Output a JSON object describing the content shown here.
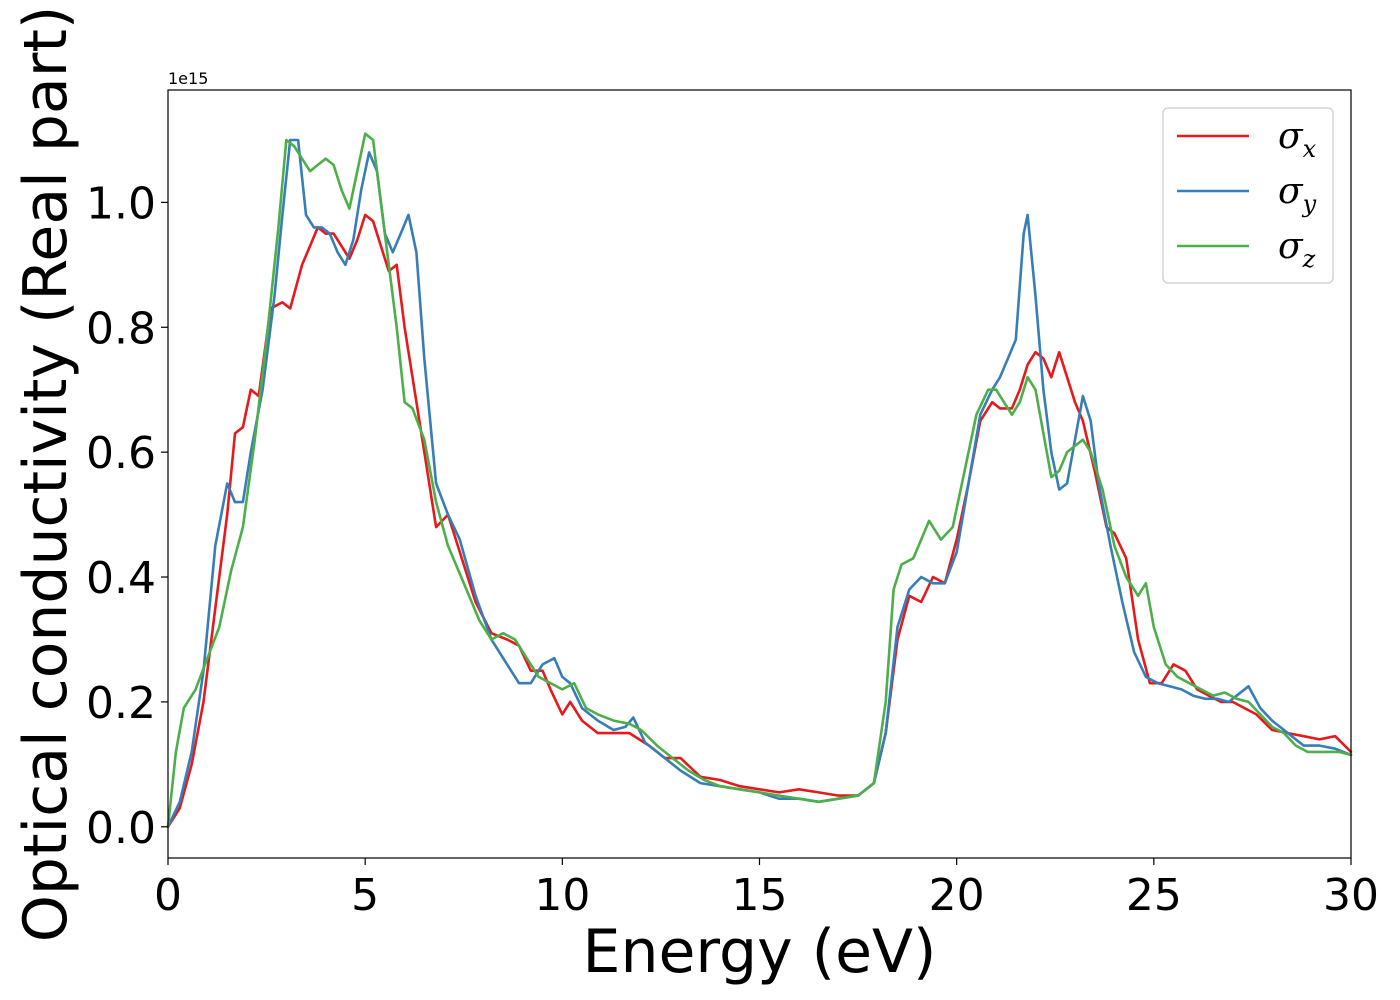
{
  "chart_data": {
    "type": "line",
    "xlabel": "Energy (eV)",
    "ylabel": "Optical conductivity (Real part)",
    "y_offset_label": "1e15",
    "xlim": [
      0,
      30
    ],
    "ylim": [
      -0.05,
      1.18
    ],
    "x_ticks": [
      0,
      5,
      10,
      15,
      20,
      25,
      30
    ],
    "x_tick_labels": [
      "0",
      "5",
      "10",
      "15",
      "20",
      "25",
      "30"
    ],
    "y_ticks": [
      0.0,
      0.2,
      0.4,
      0.6,
      0.8,
      1.0
    ],
    "y_tick_labels": [
      "0.0",
      "0.2",
      "0.4",
      "0.6",
      "0.8",
      "1.0"
    ],
    "grid": false,
    "legend_position": "top-right",
    "series": [
      {
        "name": "σ",
        "subscript": "x",
        "color": "#e41a1c",
        "points": [
          [
            0,
            0.0
          ],
          [
            0.3,
            0.03
          ],
          [
            0.6,
            0.1
          ],
          [
            0.9,
            0.2
          ],
          [
            1.2,
            0.35
          ],
          [
            1.5,
            0.5
          ],
          [
            1.7,
            0.63
          ],
          [
            1.9,
            0.64
          ],
          [
            2.1,
            0.7
          ],
          [
            2.3,
            0.69
          ],
          [
            2.6,
            0.83
          ],
          [
            2.9,
            0.84
          ],
          [
            3.1,
            0.83
          ],
          [
            3.4,
            0.9
          ],
          [
            3.6,
            0.93
          ],
          [
            3.8,
            0.96
          ],
          [
            4.0,
            0.95
          ],
          [
            4.2,
            0.95
          ],
          [
            4.4,
            0.93
          ],
          [
            4.6,
            0.91
          ],
          [
            4.8,
            0.94
          ],
          [
            5.0,
            0.98
          ],
          [
            5.2,
            0.97
          ],
          [
            5.4,
            0.93
          ],
          [
            5.6,
            0.89
          ],
          [
            5.8,
            0.9
          ],
          [
            6.0,
            0.8
          ],
          [
            6.2,
            0.72
          ],
          [
            6.5,
            0.6
          ],
          [
            6.8,
            0.48
          ],
          [
            7.1,
            0.5
          ],
          [
            7.4,
            0.44
          ],
          [
            7.8,
            0.36
          ],
          [
            8.2,
            0.31
          ],
          [
            8.6,
            0.3
          ],
          [
            8.9,
            0.29
          ],
          [
            9.2,
            0.25
          ],
          [
            9.5,
            0.25
          ],
          [
            9.7,
            0.22
          ],
          [
            10.0,
            0.18
          ],
          [
            10.2,
            0.2
          ],
          [
            10.5,
            0.17
          ],
          [
            10.9,
            0.15
          ],
          [
            11.3,
            0.15
          ],
          [
            11.7,
            0.15
          ],
          [
            12.2,
            0.13
          ],
          [
            12.6,
            0.11
          ],
          [
            13.0,
            0.11
          ],
          [
            13.5,
            0.08
          ],
          [
            14.0,
            0.075
          ],
          [
            14.5,
            0.065
          ],
          [
            15.0,
            0.06
          ],
          [
            15.5,
            0.055
          ],
          [
            16.0,
            0.06
          ],
          [
            16.5,
            0.055
          ],
          [
            17.0,
            0.05
          ],
          [
            17.5,
            0.05
          ],
          [
            17.9,
            0.07
          ],
          [
            18.2,
            0.15
          ],
          [
            18.5,
            0.3
          ],
          [
            18.8,
            0.37
          ],
          [
            19.1,
            0.36
          ],
          [
            19.4,
            0.4
          ],
          [
            19.7,
            0.39
          ],
          [
            20.0,
            0.46
          ],
          [
            20.3,
            0.55
          ],
          [
            20.6,
            0.65
          ],
          [
            20.9,
            0.68
          ],
          [
            21.1,
            0.67
          ],
          [
            21.4,
            0.67
          ],
          [
            21.6,
            0.7
          ],
          [
            21.8,
            0.74
          ],
          [
            22.0,
            0.76
          ],
          [
            22.2,
            0.75
          ],
          [
            22.4,
            0.72
          ],
          [
            22.6,
            0.76
          ],
          [
            22.8,
            0.72
          ],
          [
            23.0,
            0.68
          ],
          [
            23.2,
            0.65
          ],
          [
            23.5,
            0.57
          ],
          [
            23.8,
            0.48
          ],
          [
            24.0,
            0.47
          ],
          [
            24.3,
            0.43
          ],
          [
            24.6,
            0.3
          ],
          [
            24.9,
            0.23
          ],
          [
            25.2,
            0.23
          ],
          [
            25.5,
            0.26
          ],
          [
            25.8,
            0.25
          ],
          [
            26.1,
            0.22
          ],
          [
            26.4,
            0.21
          ],
          [
            26.7,
            0.2
          ],
          [
            27.0,
            0.2
          ],
          [
            27.3,
            0.19
          ],
          [
            27.6,
            0.18
          ],
          [
            28.0,
            0.155
          ],
          [
            28.4,
            0.15
          ],
          [
            28.8,
            0.145
          ],
          [
            29.2,
            0.14
          ],
          [
            29.6,
            0.145
          ],
          [
            30.0,
            0.12
          ]
        ]
      },
      {
        "name": "σ",
        "subscript": "y",
        "color": "#377eb8",
        "points": [
          [
            0,
            0.0
          ],
          [
            0.3,
            0.04
          ],
          [
            0.6,
            0.12
          ],
          [
            0.9,
            0.25
          ],
          [
            1.2,
            0.45
          ],
          [
            1.5,
            0.55
          ],
          [
            1.7,
            0.52
          ],
          [
            1.9,
            0.52
          ],
          [
            2.1,
            0.6
          ],
          [
            2.4,
            0.7
          ],
          [
            2.7,
            0.85
          ],
          [
            2.9,
            0.98
          ],
          [
            3.1,
            1.1
          ],
          [
            3.3,
            1.1
          ],
          [
            3.5,
            0.98
          ],
          [
            3.7,
            0.96
          ],
          [
            3.9,
            0.96
          ],
          [
            4.1,
            0.95
          ],
          [
            4.3,
            0.92
          ],
          [
            4.5,
            0.9
          ],
          [
            4.7,
            0.94
          ],
          [
            4.9,
            1.02
          ],
          [
            5.1,
            1.08
          ],
          [
            5.3,
            1.05
          ],
          [
            5.5,
            0.95
          ],
          [
            5.7,
            0.92
          ],
          [
            5.9,
            0.95
          ],
          [
            6.1,
            0.98
          ],
          [
            6.3,
            0.92
          ],
          [
            6.5,
            0.75
          ],
          [
            6.8,
            0.55
          ],
          [
            7.1,
            0.5
          ],
          [
            7.4,
            0.46
          ],
          [
            7.8,
            0.37
          ],
          [
            8.2,
            0.3
          ],
          [
            8.6,
            0.26
          ],
          [
            8.9,
            0.23
          ],
          [
            9.2,
            0.23
          ],
          [
            9.5,
            0.26
          ],
          [
            9.8,
            0.27
          ],
          [
            10.0,
            0.24
          ],
          [
            10.2,
            0.23
          ],
          [
            10.5,
            0.19
          ],
          [
            10.9,
            0.17
          ],
          [
            11.3,
            0.155
          ],
          [
            11.6,
            0.16
          ],
          [
            11.8,
            0.175
          ],
          [
            12.1,
            0.135
          ],
          [
            12.5,
            0.115
          ],
          [
            13.0,
            0.09
          ],
          [
            13.5,
            0.07
          ],
          [
            14.0,
            0.065
          ],
          [
            14.5,
            0.06
          ],
          [
            15.0,
            0.055
          ],
          [
            15.5,
            0.045
          ],
          [
            16.0,
            0.045
          ],
          [
            16.5,
            0.04
          ],
          [
            17.0,
            0.045
          ],
          [
            17.5,
            0.05
          ],
          [
            17.9,
            0.07
          ],
          [
            18.2,
            0.15
          ],
          [
            18.5,
            0.32
          ],
          [
            18.8,
            0.38
          ],
          [
            19.1,
            0.4
          ],
          [
            19.4,
            0.39
          ],
          [
            19.7,
            0.39
          ],
          [
            20.0,
            0.44
          ],
          [
            20.3,
            0.55
          ],
          [
            20.6,
            0.66
          ],
          [
            20.9,
            0.7
          ],
          [
            21.1,
            0.72
          ],
          [
            21.3,
            0.75
          ],
          [
            21.5,
            0.78
          ],
          [
            21.7,
            0.95
          ],
          [
            21.8,
            0.98
          ],
          [
            22.0,
            0.85
          ],
          [
            22.2,
            0.7
          ],
          [
            22.4,
            0.6
          ],
          [
            22.6,
            0.54
          ],
          [
            22.8,
            0.55
          ],
          [
            23.0,
            0.62
          ],
          [
            23.2,
            0.69
          ],
          [
            23.4,
            0.65
          ],
          [
            23.6,
            0.55
          ],
          [
            23.9,
            0.45
          ],
          [
            24.2,
            0.36
          ],
          [
            24.5,
            0.28
          ],
          [
            24.8,
            0.24
          ],
          [
            25.1,
            0.23
          ],
          [
            25.4,
            0.225
          ],
          [
            25.7,
            0.22
          ],
          [
            26.0,
            0.21
          ],
          [
            26.3,
            0.205
          ],
          [
            26.6,
            0.205
          ],
          [
            26.9,
            0.2
          ],
          [
            27.1,
            0.21
          ],
          [
            27.4,
            0.225
          ],
          [
            27.7,
            0.19
          ],
          [
            28.0,
            0.17
          ],
          [
            28.4,
            0.15
          ],
          [
            28.8,
            0.13
          ],
          [
            29.2,
            0.13
          ],
          [
            29.6,
            0.125
          ],
          [
            30.0,
            0.115
          ]
        ]
      },
      {
        "name": "σ",
        "subscript": "z",
        "color": "#4daf4a",
        "points": [
          [
            0,
            0.0
          ],
          [
            0.2,
            0.12
          ],
          [
            0.4,
            0.19
          ],
          [
            0.7,
            0.22
          ],
          [
            1.0,
            0.27
          ],
          [
            1.3,
            0.32
          ],
          [
            1.6,
            0.41
          ],
          [
            1.9,
            0.48
          ],
          [
            2.2,
            0.62
          ],
          [
            2.5,
            0.78
          ],
          [
            2.8,
            0.96
          ],
          [
            3.0,
            1.1
          ],
          [
            3.2,
            1.09
          ],
          [
            3.4,
            1.07
          ],
          [
            3.6,
            1.05
          ],
          [
            3.8,
            1.06
          ],
          [
            4.0,
            1.07
          ],
          [
            4.2,
            1.06
          ],
          [
            4.4,
            1.02
          ],
          [
            4.6,
            0.99
          ],
          [
            4.8,
            1.05
          ],
          [
            5.0,
            1.11
          ],
          [
            5.2,
            1.1
          ],
          [
            5.4,
            1.0
          ],
          [
            5.6,
            0.9
          ],
          [
            5.8,
            0.8
          ],
          [
            6.0,
            0.68
          ],
          [
            6.2,
            0.67
          ],
          [
            6.5,
            0.62
          ],
          [
            6.8,
            0.52
          ],
          [
            7.1,
            0.45
          ],
          [
            7.5,
            0.39
          ],
          [
            7.9,
            0.33
          ],
          [
            8.2,
            0.3
          ],
          [
            8.5,
            0.31
          ],
          [
            8.8,
            0.3
          ],
          [
            9.1,
            0.27
          ],
          [
            9.4,
            0.24
          ],
          [
            9.7,
            0.23
          ],
          [
            10.0,
            0.22
          ],
          [
            10.3,
            0.23
          ],
          [
            10.6,
            0.19
          ],
          [
            10.9,
            0.18
          ],
          [
            11.3,
            0.17
          ],
          [
            11.7,
            0.165
          ],
          [
            12.0,
            0.155
          ],
          [
            12.4,
            0.13
          ],
          [
            12.8,
            0.11
          ],
          [
            13.2,
            0.09
          ],
          [
            13.6,
            0.075
          ],
          [
            14.0,
            0.065
          ],
          [
            14.5,
            0.06
          ],
          [
            15.0,
            0.055
          ],
          [
            15.5,
            0.05
          ],
          [
            16.0,
            0.045
          ],
          [
            16.5,
            0.04
          ],
          [
            17.0,
            0.045
          ],
          [
            17.5,
            0.05
          ],
          [
            17.9,
            0.07
          ],
          [
            18.2,
            0.2
          ],
          [
            18.4,
            0.38
          ],
          [
            18.6,
            0.42
          ],
          [
            18.9,
            0.43
          ],
          [
            19.1,
            0.46
          ],
          [
            19.3,
            0.49
          ],
          [
            19.6,
            0.46
          ],
          [
            19.9,
            0.48
          ],
          [
            20.2,
            0.57
          ],
          [
            20.5,
            0.66
          ],
          [
            20.8,
            0.7
          ],
          [
            21.0,
            0.7
          ],
          [
            21.2,
            0.68
          ],
          [
            21.4,
            0.66
          ],
          [
            21.6,
            0.68
          ],
          [
            21.8,
            0.72
          ],
          [
            22.0,
            0.7
          ],
          [
            22.2,
            0.63
          ],
          [
            22.4,
            0.56
          ],
          [
            22.6,
            0.57
          ],
          [
            22.8,
            0.6
          ],
          [
            23.0,
            0.61
          ],
          [
            23.2,
            0.62
          ],
          [
            23.4,
            0.6
          ],
          [
            23.7,
            0.54
          ],
          [
            24.0,
            0.45
          ],
          [
            24.3,
            0.4
          ],
          [
            24.6,
            0.37
          ],
          [
            24.8,
            0.39
          ],
          [
            25.0,
            0.32
          ],
          [
            25.3,
            0.26
          ],
          [
            25.6,
            0.24
          ],
          [
            25.9,
            0.23
          ],
          [
            26.2,
            0.22
          ],
          [
            26.5,
            0.21
          ],
          [
            26.8,
            0.215
          ],
          [
            27.1,
            0.205
          ],
          [
            27.4,
            0.2
          ],
          [
            27.7,
            0.18
          ],
          [
            28.0,
            0.16
          ],
          [
            28.3,
            0.15
          ],
          [
            28.6,
            0.13
          ],
          [
            28.9,
            0.12
          ],
          [
            29.3,
            0.12
          ],
          [
            29.7,
            0.12
          ],
          [
            30.0,
            0.115
          ]
        ]
      }
    ]
  }
}
